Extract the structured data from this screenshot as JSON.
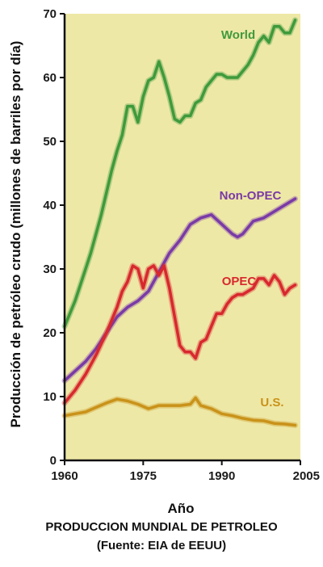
{
  "chart_data": {
    "type": "line",
    "title": "PRODUCCION MUNDIAL DE PETROLEO",
    "subtitle": "(Fuente: EIA de EEUU)",
    "xlabel": "Año",
    "ylabel": "Producción de petróleo crudo (millones de barriles por día)",
    "xlim": [
      1960,
      2005
    ],
    "ylim": [
      0,
      70
    ],
    "x_ticks": [
      "1960",
      "1975",
      "1990",
      "2005"
    ],
    "y_ticks": [
      "0",
      "10",
      "20",
      "30",
      "40",
      "50",
      "60",
      "70"
    ],
    "grid": false,
    "legend": "inline labels",
    "background_color": "#eee8a6",
    "series": [
      {
        "name": "World",
        "color": "#3f9a3c",
        "x": [
          1960,
          1961,
          1962,
          1963,
          1964,
          1965,
          1966,
          1967,
          1968,
          1969,
          1970,
          1971,
          1972,
          1973,
          1974,
          1975,
          1976,
          1977,
          1978,
          1979,
          1980,
          1981,
          1982,
          1983,
          1984,
          1985,
          1986,
          1987,
          1988,
          1989,
          1990,
          1991,
          1992,
          1993,
          1994,
          1995,
          1996,
          1997,
          1998,
          1999,
          2000,
          2001,
          2002,
          2003,
          2004
        ],
        "values": [
          21,
          23,
          25,
          27.5,
          30,
          32.5,
          35.5,
          38.5,
          42,
          45.5,
          48.5,
          51,
          55.5,
          55.5,
          53,
          57,
          59.5,
          60,
          62.5,
          60,
          57,
          53.5,
          53,
          54,
          54,
          56,
          56.5,
          58.5,
          59.5,
          60.5,
          60.5,
          60,
          60,
          60,
          61,
          62,
          63.5,
          65.5,
          66.5,
          65.5,
          68,
          68,
          67,
          67,
          69
        ]
      },
      {
        "name": "Non-OPEC",
        "color": "#7a3aa6",
        "x": [
          1960,
          1962,
          1964,
          1966,
          1968,
          1970,
          1972,
          1974,
          1976,
          1978,
          1980,
          1982,
          1984,
          1986,
          1988,
          1990,
          1992,
          1993,
          1994,
          1996,
          1998,
          2000,
          2002,
          2004
        ],
        "values": [
          12.5,
          14,
          15.5,
          17.5,
          20,
          22.5,
          24,
          25,
          26.5,
          29.5,
          32.5,
          34.5,
          37,
          38,
          38.5,
          37,
          35.5,
          35,
          35.5,
          37.5,
          38,
          39,
          40,
          41
        ]
      },
      {
        "name": "OPEC",
        "color": "#d8282e",
        "x": [
          1960,
          1962,
          1964,
          1966,
          1968,
          1970,
          1971,
          1972,
          1973,
          1974,
          1975,
          1976,
          1977,
          1978,
          1979,
          1980,
          1981,
          1982,
          1983,
          1984,
          1985,
          1986,
          1987,
          1988,
          1989,
          1990,
          1991,
          1992,
          1993,
          1994,
          1995,
          1996,
          1997,
          1998,
          1999,
          2000,
          2001,
          2002,
          2003,
          2004
        ],
        "values": [
          9,
          11,
          13.5,
          16.5,
          20,
          24,
          26.5,
          28,
          30.5,
          30,
          27,
          30,
          30.5,
          29,
          30.5,
          27,
          22.5,
          18,
          17,
          17,
          16,
          18.5,
          19,
          21,
          23,
          23,
          24.5,
          25.5,
          26,
          26,
          26.5,
          27,
          28.5,
          28.5,
          27.5,
          29,
          28,
          26,
          27,
          27.5
        ]
      },
      {
        "name": "U.S.",
        "color": "#c99219",
        "x": [
          1960,
          1962,
          1964,
          1966,
          1968,
          1970,
          1972,
          1974,
          1976,
          1978,
          1980,
          1982,
          1984,
          1985,
          1986,
          1988,
          1990,
          1992,
          1994,
          1996,
          1998,
          2000,
          2002,
          2004
        ],
        "values": [
          7,
          7.3,
          7.6,
          8.3,
          9,
          9.6,
          9.3,
          8.8,
          8.1,
          8.6,
          8.6,
          8.6,
          8.8,
          9.8,
          8.6,
          8.1,
          7.3,
          7,
          6.6,
          6.3,
          6.2,
          5.8,
          5.7,
          5.5
        ]
      }
    ]
  }
}
